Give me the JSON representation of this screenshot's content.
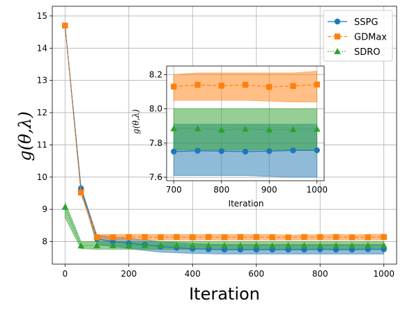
{
  "chart_data": {
    "type": "line",
    "xlabel": "Iteration",
    "ylabel": "g(θ,λ)",
    "xlim": [
      -40,
      1040
    ],
    "ylim": [
      7.3,
      15.3
    ],
    "xticks": [
      0,
      200,
      400,
      600,
      800,
      1000
    ],
    "yticks": [
      8,
      9,
      10,
      11,
      12,
      13,
      14,
      15
    ],
    "grid": true,
    "legend_position": "top-right",
    "x": [
      0,
      50,
      100,
      150,
      200,
      250,
      300,
      350,
      400,
      450,
      500,
      550,
      600,
      650,
      700,
      750,
      800,
      850,
      900,
      950,
      1000
    ],
    "series": [
      {
        "name": "SSPG",
        "color": "#1f77b4",
        "linestyle": "solid",
        "marker": "circle",
        "values": [
          14.7,
          9.65,
          8.08,
          8.0,
          7.95,
          7.9,
          7.84,
          7.81,
          7.78,
          7.76,
          7.75,
          7.75,
          7.75,
          7.75,
          7.75,
          7.75,
          7.76,
          7.75,
          7.75,
          7.76,
          7.76
        ],
        "lower": [
          14.7,
          9.6,
          7.9,
          7.85,
          7.78,
          7.72,
          7.67,
          7.65,
          7.63,
          7.62,
          7.61,
          7.61,
          7.61,
          7.61,
          7.61,
          7.61,
          7.61,
          7.61,
          7.61,
          7.61,
          7.61
        ],
        "upper": [
          14.7,
          9.7,
          8.2,
          8.15,
          8.1,
          8.05,
          8.0,
          7.97,
          7.94,
          7.92,
          7.91,
          7.91,
          7.91,
          7.91,
          7.91,
          7.91,
          7.91,
          7.91,
          7.91,
          7.91,
          7.91
        ]
      },
      {
        "name": "GDMax",
        "color": "#ff7f0e",
        "linestyle": "dashed",
        "marker": "square",
        "values": [
          14.7,
          9.52,
          8.13,
          8.13,
          8.14,
          8.14,
          8.13,
          8.14,
          8.13,
          8.14,
          8.13,
          8.14,
          8.14,
          8.13,
          8.13,
          8.14,
          8.14,
          8.14,
          8.13,
          8.13,
          8.14
        ],
        "lower": [
          14.7,
          9.47,
          8.05,
          8.05,
          8.05,
          8.05,
          8.05,
          8.05,
          8.05,
          8.05,
          8.05,
          8.05,
          8.05,
          8.05,
          8.05,
          8.05,
          8.05,
          8.05,
          8.05,
          8.05,
          8.05
        ],
        "upper": [
          14.7,
          9.57,
          8.22,
          8.22,
          8.22,
          8.22,
          8.22,
          8.22,
          8.22,
          8.22,
          8.22,
          8.22,
          8.22,
          8.22,
          8.2,
          8.21,
          8.21,
          8.22,
          8.21,
          8.22,
          8.23
        ]
      },
      {
        "name": "SDRO",
        "color": "#2ca02c",
        "linestyle": "dotted",
        "marker": "triangle",
        "values": [
          9.07,
          7.87,
          7.88,
          7.88,
          7.88,
          7.88,
          7.88,
          7.88,
          7.87,
          7.88,
          7.88,
          7.88,
          7.88,
          7.87,
          7.88,
          7.88,
          7.87,
          7.88,
          7.87,
          7.88,
          7.88
        ],
        "lower": [
          8.75,
          7.78,
          7.76,
          7.76,
          7.76,
          7.76,
          7.76,
          7.76,
          7.76,
          7.76,
          7.76,
          7.76,
          7.76,
          7.76,
          7.76,
          7.76,
          7.76,
          7.76,
          7.76,
          7.76,
          7.76
        ],
        "upper": [
          9.22,
          8.0,
          8.0,
          8.0,
          8.0,
          8.0,
          8.0,
          8.0,
          8.0,
          8.0,
          8.0,
          8.0,
          8.0,
          8.0,
          8.0,
          8.0,
          8.0,
          8.0,
          8.0,
          8.0,
          8.0
        ]
      }
    ],
    "inset": {
      "xlabel": "Iteration",
      "ylabel": "g(θ,λ)",
      "xlim": [
        685,
        1015
      ],
      "ylim": [
        7.58,
        8.25
      ],
      "xticks": [
        700,
        800,
        900,
        1000
      ],
      "yticks": [
        7.6,
        7.8,
        8.0,
        8.2
      ],
      "x": [
        700,
        750,
        800,
        850,
        900,
        950,
        1000
      ],
      "series": [
        {
          "name": "SSPG",
          "values": [
            7.75,
            7.755,
            7.753,
            7.75,
            7.753,
            7.757,
            7.758
          ],
          "lower": [
            7.61,
            7.61,
            7.61,
            7.61,
            7.605,
            7.6,
            7.6
          ],
          "upper": [
            7.91,
            7.91,
            7.91,
            7.91,
            7.91,
            7.91,
            7.91
          ]
        },
        {
          "name": "GDMax",
          "values": [
            8.13,
            8.14,
            8.135,
            8.14,
            8.128,
            8.133,
            8.142
          ],
          "lower": [
            8.05,
            8.05,
            8.05,
            8.05,
            8.045,
            8.04,
            8.04
          ],
          "upper": [
            8.2,
            8.21,
            8.21,
            8.21,
            8.21,
            8.21,
            8.22
          ]
        },
        {
          "name": "SDRO",
          "values": [
            7.885,
            7.885,
            7.877,
            7.882,
            7.878,
            7.88,
            7.882
          ],
          "lower": [
            7.76,
            7.76,
            7.76,
            7.76,
            7.76,
            7.76,
            7.76
          ],
          "upper": [
            8.0,
            8.0,
            8.0,
            8.0,
            8.0,
            8.0,
            8.0
          ]
        }
      ]
    }
  }
}
